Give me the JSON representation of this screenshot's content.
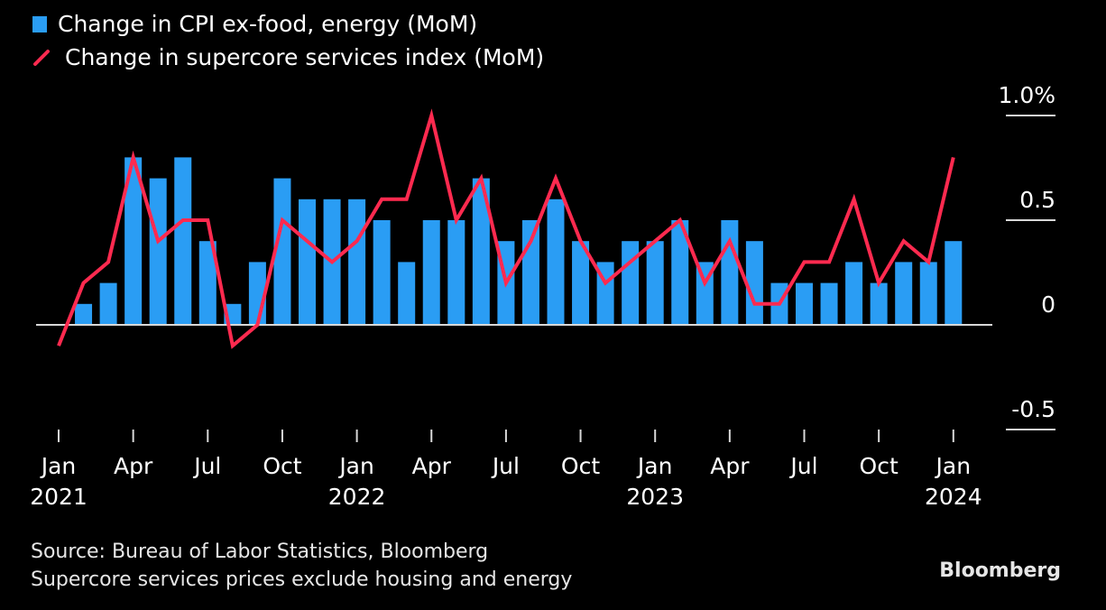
{
  "colors": {
    "bar": "#2a9df4",
    "line": "#ff2a4f",
    "axis": "#d8d8d8",
    "background": "#000000"
  },
  "legend": {
    "bar_label": "Change in CPI ex-food, energy (MoM)",
    "line_label": "Change in supercore services index (MoM)"
  },
  "footer": {
    "source": "Source: Bureau of Labor Statistics, Bloomberg",
    "note": "Supercore services prices exclude housing and energy",
    "brand": "Bloomberg"
  },
  "chart_data": {
    "type": "bar",
    "title": "",
    "xlabel": "",
    "ylabel": "",
    "ylim": [
      -0.5,
      1.0
    ],
    "y_ticks": [
      {
        "value": 1.0,
        "label": "1.0%"
      },
      {
        "value": 0.5,
        "label": "0.5"
      },
      {
        "value": 0,
        "label": "0"
      },
      {
        "value": -0.5,
        "label": "-0.5"
      }
    ],
    "categories": [
      "Jan 2021",
      "Feb 2021",
      "Mar 2021",
      "Apr 2021",
      "May 2021",
      "Jun 2021",
      "Jul 2021",
      "Aug 2021",
      "Sep 2021",
      "Oct 2021",
      "Nov 2021",
      "Dec 2021",
      "Jan 2022",
      "Feb 2022",
      "Mar 2022",
      "Apr 2022",
      "May 2022",
      "Jun 2022",
      "Jul 2022",
      "Aug 2022",
      "Sep 2022",
      "Oct 2022",
      "Nov 2022",
      "Dec 2022",
      "Jan 2023",
      "Feb 2023",
      "Mar 2023",
      "Apr 2023",
      "May 2023",
      "Jun 2023",
      "Jul 2023",
      "Aug 2023",
      "Sep 2023",
      "Oct 2023",
      "Nov 2023",
      "Dec 2023",
      "Jan 2024"
    ],
    "x_ticks": [
      {
        "index": 0,
        "month": "Jan",
        "year": "2021"
      },
      {
        "index": 3,
        "month": "Apr",
        "year": ""
      },
      {
        "index": 6,
        "month": "Jul",
        "year": ""
      },
      {
        "index": 9,
        "month": "Oct",
        "year": ""
      },
      {
        "index": 12,
        "month": "Jan",
        "year": "2022"
      },
      {
        "index": 15,
        "month": "Apr",
        "year": ""
      },
      {
        "index": 18,
        "month": "Jul",
        "year": ""
      },
      {
        "index": 21,
        "month": "Oct",
        "year": ""
      },
      {
        "index": 24,
        "month": "Jan",
        "year": "2023"
      },
      {
        "index": 27,
        "month": "Apr",
        "year": ""
      },
      {
        "index": 30,
        "month": "Jul",
        "year": ""
      },
      {
        "index": 33,
        "month": "Oct",
        "year": ""
      },
      {
        "index": 36,
        "month": "Jan",
        "year": "2024"
      }
    ],
    "series": [
      {
        "name": "Change in CPI ex-food, energy (MoM)",
        "kind": "bar",
        "values": [
          0.0,
          0.1,
          0.2,
          0.8,
          0.7,
          0.8,
          0.4,
          0.1,
          0.3,
          0.7,
          0.6,
          0.6,
          0.6,
          0.5,
          0.3,
          0.5,
          0.5,
          0.7,
          0.4,
          0.5,
          0.6,
          0.4,
          0.3,
          0.4,
          0.4,
          0.5,
          0.3,
          0.5,
          0.4,
          0.2,
          0.2,
          0.2,
          0.3,
          0.2,
          0.3,
          0.3,
          0.4
        ]
      },
      {
        "name": "Change in supercore services index (MoM)",
        "kind": "line",
        "values": [
          -0.1,
          0.2,
          0.3,
          0.8,
          0.4,
          0.5,
          0.5,
          -0.1,
          0.0,
          0.5,
          0.4,
          0.3,
          0.4,
          0.6,
          0.6,
          1.0,
          0.5,
          0.7,
          0.2,
          0.4,
          0.7,
          0.4,
          0.2,
          0.3,
          0.4,
          0.5,
          0.2,
          0.4,
          0.1,
          0.1,
          0.3,
          0.3,
          0.6,
          0.2,
          0.4,
          0.3,
          0.8
        ]
      }
    ],
    "legend_position": "top-left",
    "grid": false
  }
}
